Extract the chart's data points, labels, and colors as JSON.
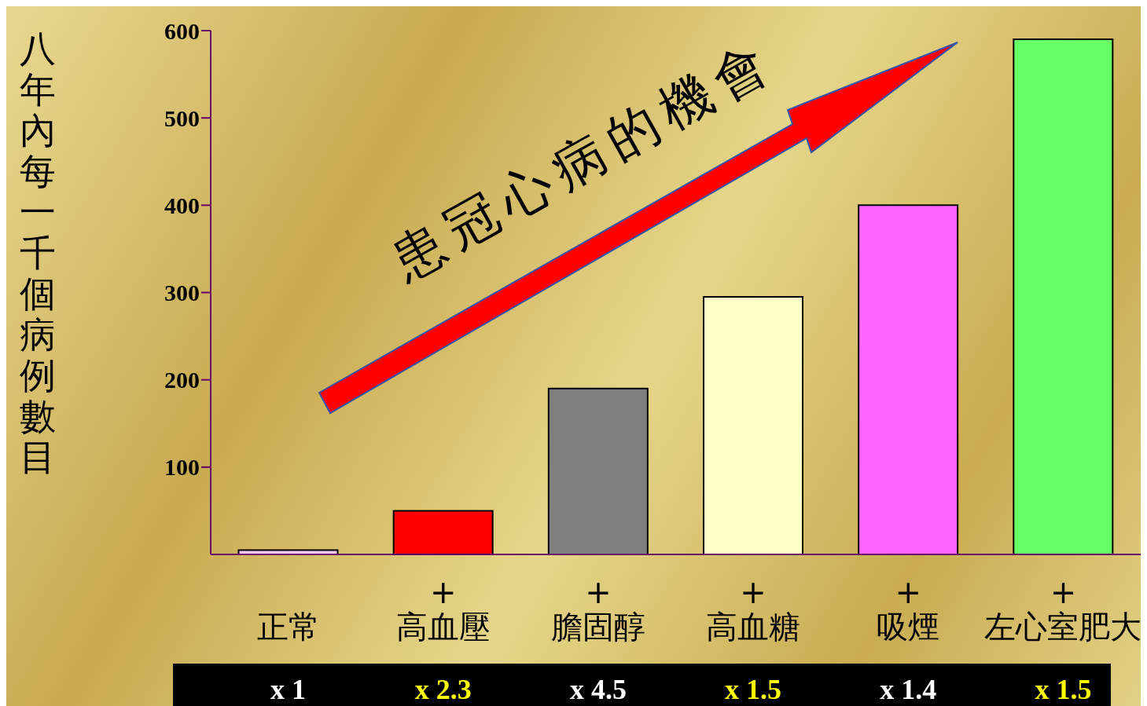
{
  "chart_data": {
    "type": "bar",
    "ylabel": "八年內每一千個病例數目",
    "categories": [
      "正常",
      "+\n高血壓",
      "+\n膽固醇",
      "+\n高血糖",
      "+\n吸煙",
      "+\n左心室肥大"
    ],
    "values": [
      5,
      50,
      190,
      295,
      400,
      590
    ],
    "colors": [
      "#ffc8f0",
      "#ff0000",
      "#808080",
      "#ffffc8",
      "#ff66ff",
      "#66ff66"
    ],
    "ylim": [
      0,
      600
    ],
    "yticks": [
      100,
      200,
      300,
      400,
      500,
      600
    ],
    "grid": false,
    "annotations": [
      "患冠心病的機會",
      "x 1",
      "x 2.3",
      "x 4.5",
      "x 1.5",
      "x 1.4",
      "x 1.5"
    ]
  }
}
